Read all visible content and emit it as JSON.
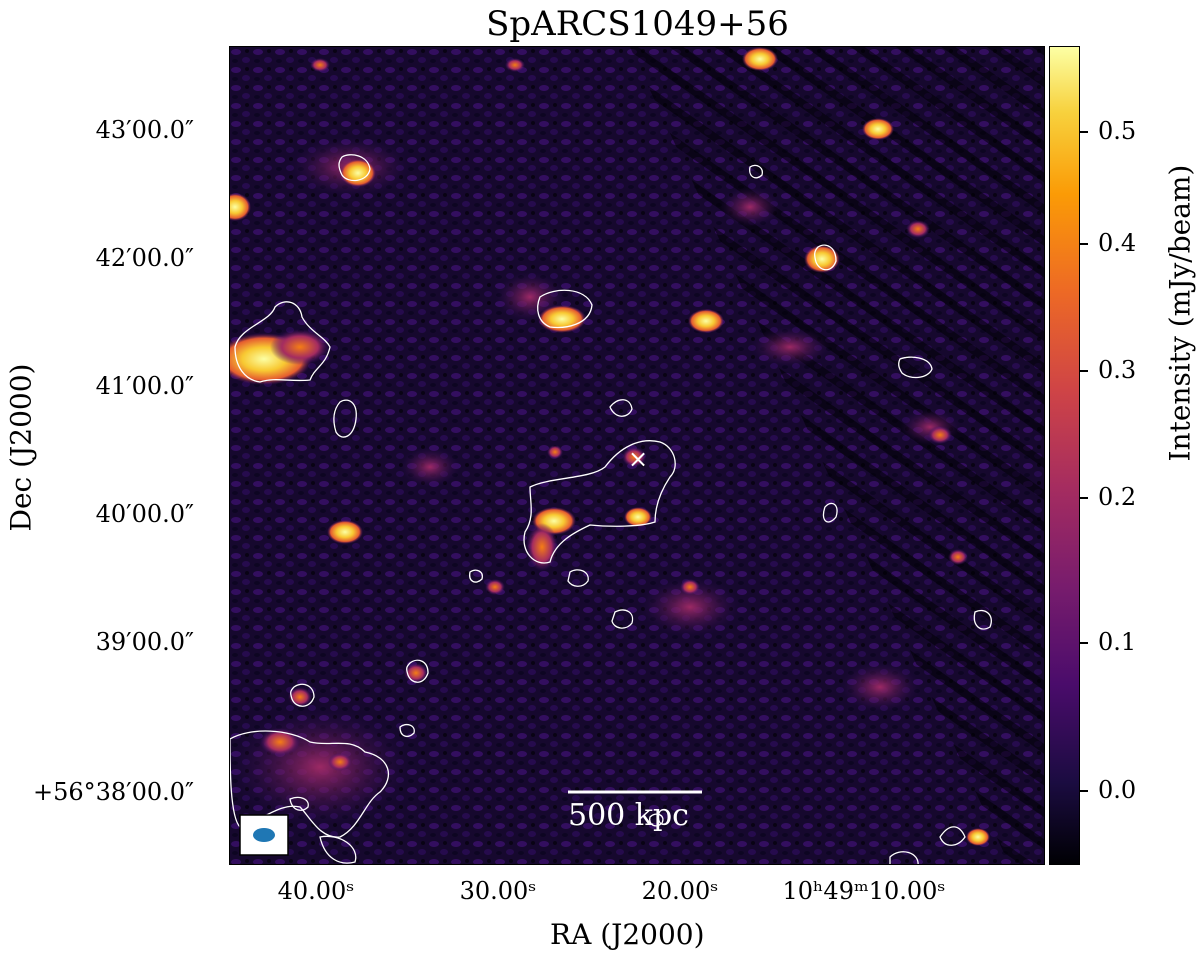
{
  "title": "SpARCS1049+56",
  "axes": {
    "x_title": "RA (J2000)",
    "y_title": "Dec (J2000)",
    "x_ticks": [
      "40.00ˢ",
      "30.00ˢ",
      "20.00ˢ",
      "10ʰ49ᵐ10.00ˢ"
    ],
    "y_ticks": [
      "43′00.0″",
      "42′00.0″",
      "41′00.0″",
      "40′00.0″",
      "39′00.0″",
      "+56°38′00.0″"
    ]
  },
  "colorbar": {
    "title": "Intensity (mJy/beam)",
    "ticks": [
      "0.5",
      "0.4",
      "0.3",
      "0.2",
      "0.1",
      "0.0"
    ],
    "colormap": "inferno"
  },
  "scalebar": {
    "label": "500 kpc"
  },
  "beam": {
    "color": "#1f77b4"
  },
  "marker": {
    "symbol": "×",
    "color": "#ffffff"
  }
}
